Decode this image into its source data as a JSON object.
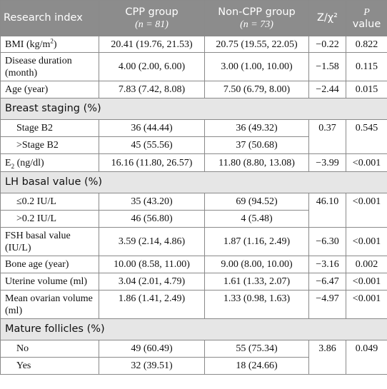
{
  "header": {
    "col1": "Research index",
    "col2_line1": "CPP group",
    "col2_line2": "(n = 81)",
    "col3_line1": "Non-CPP group",
    "col3_line2": "(n = 73)",
    "col4": "Z/χ²",
    "col5_line1": "P",
    "col5_line2": "value"
  },
  "rows": {
    "bmi": {
      "label": "BMI (kg/m",
      "label_sup": "2",
      "label_end": ")",
      "cpp": "20.41 (19.76, 21.53)",
      "noncpp": "20.75 (19.55, 22.05)",
      "z": "−0.22",
      "p": "0.822"
    },
    "disease": {
      "label": "Disease duration (month)",
      "cpp": "4.00 (2.00, 6.00)",
      "noncpp": "3.00 (1.00, 10.00)",
      "z": "−1.58",
      "p": "0.115"
    },
    "age": {
      "label": "Age (year)",
      "cpp": "7.83 (7.42, 8.08)",
      "noncpp": "7.50 (6.79, 8.00)",
      "z": "−2.44",
      "p": "0.015"
    },
    "breast_section": "Breast staging (%)",
    "stage_b2": {
      "label": "Stage B2",
      "cpp": "36 (44.44)",
      "noncpp": "36 (49.32)"
    },
    "stage_gt_b2": {
      "label": ">Stage B2",
      "cpp": "45 (55.56)",
      "noncpp": "37 (50.68)"
    },
    "breast_z": "0.37",
    "breast_p": "0.545",
    "e2": {
      "label": "E",
      "label_sub": "2",
      "label_end": " (ng/dl)",
      "cpp": "16.16 (11.80, 26.57)",
      "noncpp": "11.80 (8.80, 13.08)",
      "z": "−3.99",
      "p": "<0.001"
    },
    "lh_section": "LH basal value (%)",
    "lh_le": {
      "label": "≤0.2 IU/L",
      "cpp": "35 (43.20)",
      "noncpp": "69 (94.52)"
    },
    "lh_gt": {
      "label": ">0.2 IU/L",
      "cpp": "46 (56.80)",
      "noncpp": "4 (5.48)"
    },
    "lh_z": "46.10",
    "lh_p": "<0.001",
    "fsh": {
      "label": "FSH basal value (IU/L)",
      "cpp": "3.59 (2.14, 4.86)",
      "noncpp": "1.87 (1.16, 2.49)",
      "z": "−6.30",
      "p": "<0.001"
    },
    "bone": {
      "label": "Bone age (year)",
      "cpp": "10.00 (8.58, 11.00)",
      "noncpp": "9.00 (8.00, 10.00)",
      "z": "−3.16",
      "p": "0.002"
    },
    "uterine": {
      "label": "Uterine volume (ml)",
      "cpp": "3.04 (2.01, 4.79)",
      "noncpp": "1.61 (1.33, 2.07)",
      "z": "−6.47",
      "p": "<0.001"
    },
    "ovarian": {
      "label": "Mean ovarian volume (ml)",
      "cpp": "1.86 (1.41, 2.49)",
      "noncpp": "1.33 (0.98, 1.63)",
      "z": "−4.97",
      "p": "<0.001"
    },
    "mature_section": "Mature follicles (%)",
    "mature_no": {
      "label": "No",
      "cpp": "49 (60.49)",
      "noncpp": "55 (75.34)"
    },
    "mature_yes": {
      "label": "Yes",
      "cpp": "32 (39.51)",
      "noncpp": "18 (24.66)"
    },
    "mature_z": "3.86",
    "mature_p": "0.049"
  }
}
